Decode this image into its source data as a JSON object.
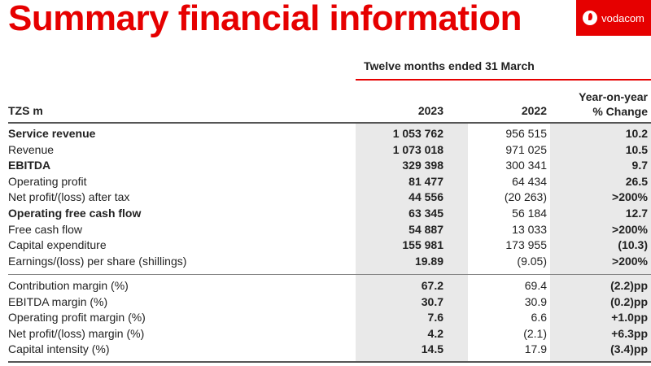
{
  "title": "Summary financial information",
  "logo_text": "vodacom",
  "period_header": "Twelve months ended 31 March",
  "columns": {
    "label": "TZS m",
    "y2023": "2023",
    "y2022": "2022",
    "yoy_line1": "Year-on-year",
    "yoy_line2": "% Change"
  },
  "section1": [
    {
      "label": "Service revenue",
      "v2023": "1 053 762",
      "v2022": "956 515",
      "yoy": "10.2",
      "bold": true
    },
    {
      "label": "Revenue",
      "v2023": "1 073 018",
      "v2022": "971 025",
      "yoy": "10.5",
      "bold": false
    },
    {
      "label": "EBITDA",
      "v2023": "329 398",
      "v2022": "300 341",
      "yoy": "9.7",
      "bold": true
    },
    {
      "label": "Operating profit",
      "v2023": "81 477",
      "v2022": "64 434",
      "yoy": "26.5",
      "bold": false
    },
    {
      "label": "Net profit/(loss) after tax",
      "v2023": "44 556",
      "v2022": "(20 263)",
      "yoy": ">200%",
      "bold": false
    },
    {
      "label": "Operating free cash flow",
      "v2023": "63 345",
      "v2022": "56 184",
      "yoy": "12.7",
      "bold": true
    },
    {
      "label": "Free cash flow",
      "v2023": "54 887",
      "v2022": "13 033",
      "yoy": ">200%",
      "bold": false
    },
    {
      "label": "Capital expenditure",
      "v2023": "155 981",
      "v2022": "173 955",
      "yoy": "(10.3)",
      "bold": false
    },
    {
      "label": "Earnings/(loss) per share (shillings)",
      "v2023": "19.89",
      "v2022": "(9.05)",
      "yoy": ">200%",
      "bold": false
    }
  ],
  "section2": [
    {
      "label": "Contribution margin (%)",
      "v2023": "67.2",
      "v2022": "69.4",
      "yoy": "(2.2)pp"
    },
    {
      "label": "EBITDA margin (%)",
      "v2023": "30.7",
      "v2022": "30.9",
      "yoy": "(0.2)pp"
    },
    {
      "label": "Operating profit margin (%)",
      "v2023": "7.6",
      "v2022": "6.6",
      "yoy": "+1.0pp"
    },
    {
      "label": "Net profit/(loss) margin (%)",
      "v2023": "4.2",
      "v2022": "(2.1)",
      "yoy": "+6.3pp"
    },
    {
      "label": "Capital intensity (%)",
      "v2023": "14.5",
      "v2022": "17.9",
      "yoy": "(3.4)pp"
    }
  ],
  "colors": {
    "brand_red": "#e60000",
    "shade": "#e9e9e9"
  }
}
